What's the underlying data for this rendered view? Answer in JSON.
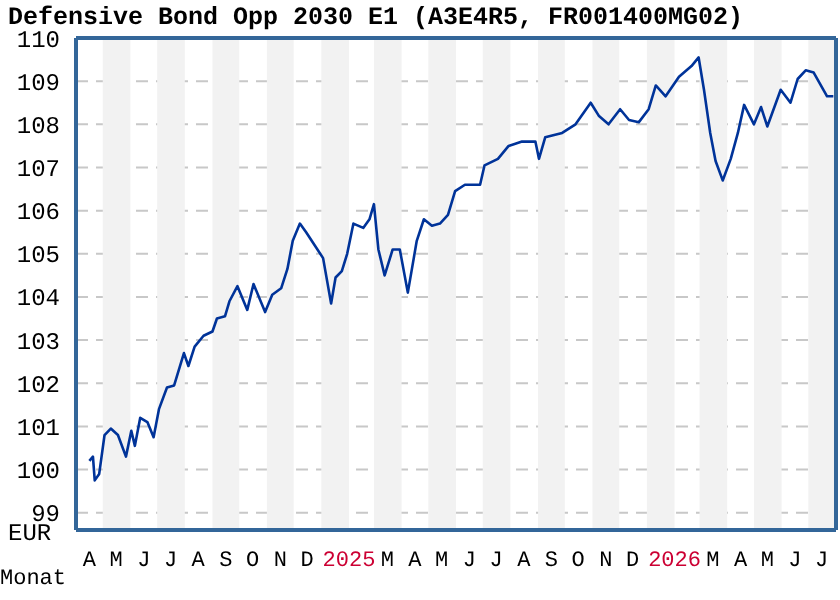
{
  "chart_data": {
    "type": "line",
    "title": "Defensive Bond Opp 2030 E1 (A3E4R5, FR001400MG02)",
    "xlabel": "Monat",
    "ylabel": "EUR",
    "x": [
      "2024-04-16",
      "2024-04-20",
      "2024-04-22",
      "2024-04-27",
      "2024-05-03",
      "2024-05-10",
      "2024-05-18",
      "2024-05-27",
      "2024-06-02",
      "2024-06-06",
      "2024-06-12",
      "2024-06-20",
      "2024-06-27",
      "2024-07-03",
      "2024-07-12",
      "2024-07-20",
      "2024-07-31",
      "2024-08-05",
      "2024-08-12",
      "2024-08-22",
      "2024-09-01",
      "2024-09-06",
      "2024-09-15",
      "2024-09-20",
      "2024-09-29",
      "2024-10-10",
      "2024-10-17",
      "2024-10-30",
      "2024-11-07",
      "2024-11-17",
      "2024-11-24",
      "2024-11-30",
      "2024-12-08",
      "2024-12-15",
      "2025-01-03",
      "2025-01-12",
      "2025-01-17",
      "2025-01-24",
      "2025-01-30",
      "2025-02-06",
      "2025-02-17",
      "2025-02-24",
      "2025-03-01",
      "2025-03-06",
      "2025-03-13",
      "2025-03-22",
      "2025-03-30",
      "2025-04-08",
      "2025-04-18",
      "2025-04-26",
      "2025-05-05",
      "2025-05-14",
      "2025-05-23",
      "2025-05-31",
      "2025-06-11",
      "2025-06-28",
      "2025-07-03",
      "2025-07-18",
      "2025-07-30",
      "2025-08-14",
      "2025-08-29",
      "2025-09-02",
      "2025-09-09",
      "2025-09-28",
      "2025-10-13",
      "2025-10-30",
      "2025-11-08",
      "2025-11-19",
      "2025-12-02",
      "2025-12-12",
      "2025-12-23",
      "2026-01-03",
      "2026-01-11",
      "2026-01-22",
      "2026-02-06",
      "2026-02-20",
      "2026-02-28",
      "2026-03-06",
      "2026-03-13",
      "2026-03-19",
      "2026-03-27",
      "2026-04-05",
      "2026-04-13",
      "2026-04-20",
      "2026-05-01",
      "2026-05-09",
      "2026-05-16",
      "2026-05-31",
      "2026-06-11",
      "2026-06-19",
      "2026-06-28",
      "2026-07-07",
      "2026-07-22",
      "2026-07-29"
    ],
    "series": [
      {
        "color": "#003399",
        "values": [
          100.2,
          100.3,
          99.75,
          99.9,
          100.8,
          100.95,
          100.8,
          100.3,
          100.9,
          100.55,
          101.2,
          101.1,
          100.75,
          101.4,
          101.9,
          101.95,
          102.7,
          102.4,
          102.85,
          103.1,
          103.2,
          103.5,
          103.55,
          103.9,
          104.25,
          103.7,
          104.3,
          103.65,
          104.05,
          104.2,
          104.65,
          105.3,
          105.7,
          105.5,
          104.9,
          103.85,
          104.45,
          104.6,
          105.0,
          105.7,
          105.6,
          105.8,
          106.15,
          105.1,
          104.5,
          105.1,
          105.1,
          104.1,
          105.3,
          105.8,
          105.65,
          105.7,
          105.9,
          106.45,
          106.6,
          106.6,
          107.05,
          107.2,
          107.5,
          107.6,
          107.6,
          107.2,
          107.7,
          107.8,
          108.0,
          108.5,
          108.2,
          108.0,
          108.35,
          108.1,
          108.05,
          108.35,
          108.9,
          108.65,
          109.1,
          109.35,
          109.55,
          108.8,
          107.8,
          107.15,
          106.7,
          107.2,
          107.8,
          108.45,
          108.0,
          108.4,
          107.95,
          108.8,
          108.5,
          109.05,
          109.25,
          109.2,
          108.65,
          108.65
        ]
      }
    ],
    "xlim": [
      "2024-04-01",
      "2026-08-01"
    ],
    "xticks": [
      {
        "value": "2024-04-16",
        "label": "A"
      },
      {
        "value": "2024-05-16",
        "label": "M"
      },
      {
        "value": "2024-06-16",
        "label": "J"
      },
      {
        "value": "2024-07-16",
        "label": "J"
      },
      {
        "value": "2024-08-16",
        "label": "A"
      },
      {
        "value": "2024-09-16",
        "label": "S"
      },
      {
        "value": "2024-10-16",
        "label": "O"
      },
      {
        "value": "2024-11-16",
        "label": "N"
      },
      {
        "value": "2024-12-16",
        "label": "D"
      },
      {
        "value": "2025-02-01",
        "label": "2025"
      },
      {
        "value": "2025-03-16",
        "label": "M"
      },
      {
        "value": "2025-04-16",
        "label": "A"
      },
      {
        "value": "2025-05-16",
        "label": "M"
      },
      {
        "value": "2025-06-16",
        "label": "J"
      },
      {
        "value": "2025-07-16",
        "label": "J"
      },
      {
        "value": "2025-08-16",
        "label": "A"
      },
      {
        "value": "2025-09-16",
        "label": "S"
      },
      {
        "value": "2025-10-16",
        "label": "O"
      },
      {
        "value": "2025-11-16",
        "label": "N"
      },
      {
        "value": "2025-12-16",
        "label": "D"
      },
      {
        "value": "2026-02-01",
        "label": "2026"
      },
      {
        "value": "2026-03-16",
        "label": "M"
      },
      {
        "value": "2026-04-16",
        "label": "A"
      },
      {
        "value": "2026-05-16",
        "label": "M"
      },
      {
        "value": "2026-06-16",
        "label": "J"
      },
      {
        "value": "2026-07-16",
        "label": "J"
      }
    ],
    "ylim": [
      98.6,
      110
    ],
    "yticks": [
      99,
      100,
      101,
      102,
      103,
      104,
      105,
      106,
      107,
      108,
      109,
      110
    ],
    "grid": "y",
    "legend": false,
    "marker": "none",
    "line_style": "solid",
    "bands": [
      {
        "axis": "x",
        "from": "2024-05-01",
        "to": "2024-06-01",
        "color": "#f2f2f2"
      },
      {
        "axis": "x",
        "from": "2024-07-01",
        "to": "2024-08-01",
        "color": "#f2f2f2"
      },
      {
        "axis": "x",
        "from": "2024-09-01",
        "to": "2024-10-01",
        "color": "#f2f2f2"
      },
      {
        "axis": "x",
        "from": "2024-11-01",
        "to": "2024-12-01",
        "color": "#f2f2f2"
      },
      {
        "axis": "x",
        "from": "2025-01-01",
        "to": "2025-02-01",
        "color": "#f2f2f2"
      },
      {
        "axis": "x",
        "from": "2025-03-01",
        "to": "2025-04-01",
        "color": "#f2f2f2"
      },
      {
        "axis": "x",
        "from": "2025-05-01",
        "to": "2025-06-01",
        "color": "#f2f2f2"
      },
      {
        "axis": "x",
        "from": "2025-07-01",
        "to": "2025-08-01",
        "color": "#f2f2f2"
      },
      {
        "axis": "x",
        "from": "2025-09-01",
        "to": "2025-10-01",
        "color": "#f2f2f2"
      },
      {
        "axis": "x",
        "from": "2025-11-01",
        "to": "2025-12-01",
        "color": "#f2f2f2"
      },
      {
        "axis": "x",
        "from": "2026-01-01",
        "to": "2026-02-01",
        "color": "#f2f2f2"
      },
      {
        "axis": "x",
        "from": "2026-03-01",
        "to": "2026-04-01",
        "color": "#f2f2f2"
      },
      {
        "axis": "x",
        "from": "2026-05-01",
        "to": "2026-06-01",
        "color": "#f2f2f2"
      },
      {
        "axis": "x",
        "from": "2026-07-01",
        "to": "2026-08-01",
        "color": "#f2f2f2"
      }
    ]
  }
}
